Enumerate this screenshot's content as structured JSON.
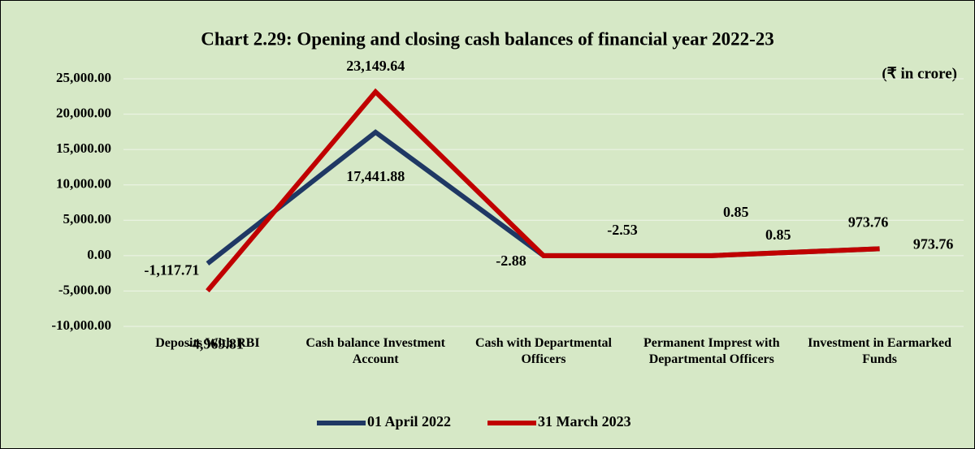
{
  "chart_data": {
    "type": "line",
    "title": "Chart 2.29: Opening and closing cash balances of financial year 2022-23",
    "annotation": "(₹ in crore)",
    "categories": [
      "Deposits With RBI",
      "Cash balance Investment Account",
      "Cash with Departmental Officers",
      "Permanent Imprest with Departmental Officers",
      "Investment in Earmarked Funds"
    ],
    "series": [
      {
        "name": "01 April 2022",
        "color": "#1f3864",
        "values": [
          -1117.71,
          17441.88,
          -2.88,
          0.85,
          973.76
        ],
        "value_labels": [
          "-1,117.71",
          "17,441.88",
          "-2.88",
          "0.85",
          "973.76"
        ]
      },
      {
        "name": "31 March 2023",
        "color": "#c00000",
        "values": [
          -4969.81,
          23149.64,
          -2.53,
          0.85,
          973.76
        ],
        "value_labels": [
          "-4,969.81",
          "23,149.64",
          "-2.53",
          "0.85",
          "973.76"
        ]
      }
    ],
    "ylim": [
      -10000,
      25000
    ],
    "yticks": [
      {
        "value": -10000,
        "label": "-10,000.00"
      },
      {
        "value": -5000,
        "label": "-5,000.00"
      },
      {
        "value": 0,
        "label": "0.00"
      },
      {
        "value": 5000,
        "label": "5,000.00"
      },
      {
        "value": 10000,
        "label": "10,000.00"
      },
      {
        "value": 15000,
        "label": "15,000.00"
      },
      {
        "value": 20000,
        "label": "20,000.00"
      },
      {
        "value": 25000,
        "label": "25,000.00"
      }
    ],
    "grid": true,
    "legend": "bottom"
  }
}
